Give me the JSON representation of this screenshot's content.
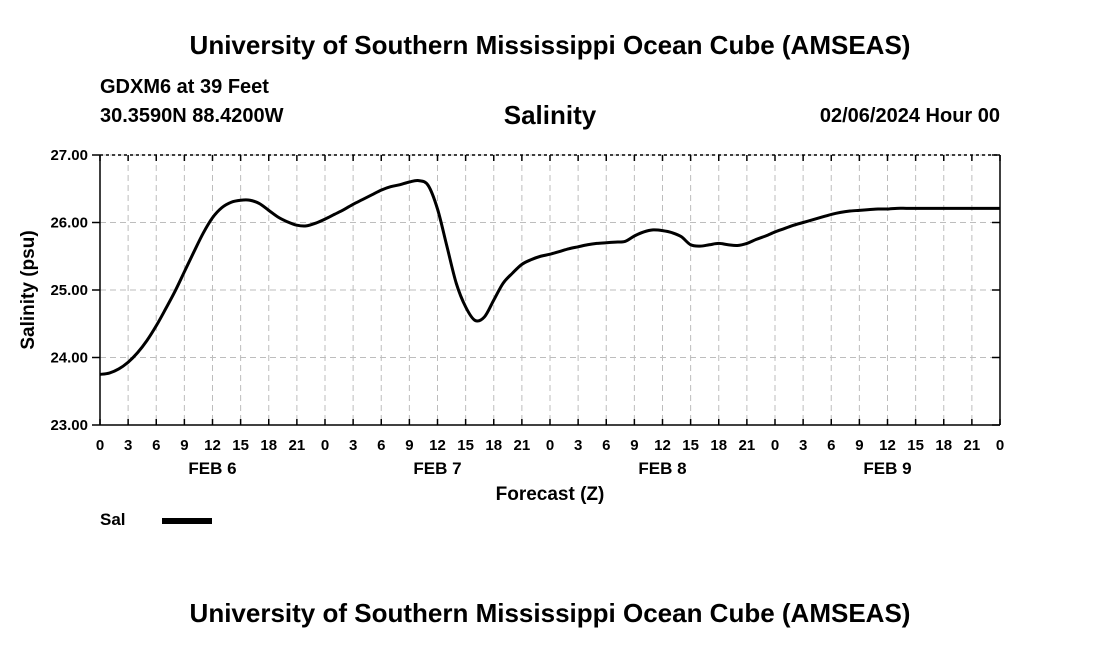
{
  "header": {
    "title": "University of Southern Mississippi Ocean Cube (AMSEAS)",
    "station": "GDXM6 at 39 Feet",
    "coords": "30.3590N  88.4200W",
    "variable": "Salinity",
    "datetime": "02/06/2024 Hour 00"
  },
  "footer": {
    "title": "University of Southern Mississippi Ocean Cube (AMSEAS)"
  },
  "chart_data": {
    "type": "line",
    "title": "Salinity",
    "xlabel": "Forecast (Z)",
    "ylabel": "Salinity (psu)",
    "ylim": [
      23.0,
      27.0
    ],
    "y_ticks": [
      "23.00",
      "24.00",
      "25.00",
      "26.00",
      "27.00"
    ],
    "y_tick_values": [
      23,
      24,
      25,
      26,
      27
    ],
    "xlim": [
      0,
      96
    ],
    "x_tick_hours": [
      0,
      3,
      6,
      9,
      12,
      15,
      18,
      21,
      24,
      27,
      30,
      33,
      36,
      39,
      42,
      45,
      48,
      51,
      54,
      57,
      60,
      63,
      66,
      69,
      72,
      75,
      78,
      81,
      84,
      87,
      90,
      93,
      96
    ],
    "x_tick_labels": [
      "0",
      "3",
      "6",
      "9",
      "12",
      "15",
      "18",
      "21",
      "0",
      "3",
      "6",
      "9",
      "12",
      "15",
      "18",
      "21",
      "0",
      "3",
      "6",
      "9",
      "12",
      "15",
      "18",
      "21",
      "0",
      "3",
      "6",
      "9",
      "12",
      "15",
      "18",
      "21",
      "0"
    ],
    "day_labels": [
      {
        "label": "FEB 6",
        "hour": 12
      },
      {
        "label": "FEB 7",
        "hour": 36
      },
      {
        "label": "FEB 8",
        "hour": 60
      },
      {
        "label": "FEB 9",
        "hour": 84
      }
    ],
    "grid": true,
    "legend": [
      {
        "name": "Sal",
        "color": "#000000"
      }
    ],
    "series": [
      {
        "name": "Sal",
        "x": [
          0,
          1,
          2,
          3,
          4,
          5,
          6,
          7,
          8,
          9,
          10,
          11,
          12,
          13,
          14,
          15,
          16,
          17,
          18,
          19,
          20,
          21,
          22,
          23,
          24,
          25,
          26,
          27,
          28,
          29,
          30,
          31,
          32,
          33,
          34,
          35,
          36,
          37,
          38,
          39,
          40,
          41,
          42,
          43,
          44,
          45,
          46,
          47,
          48,
          49,
          50,
          51,
          52,
          53,
          54,
          55,
          56,
          57,
          58,
          59,
          60,
          61,
          62,
          63,
          64,
          65,
          66,
          67,
          68,
          69,
          70,
          71,
          72,
          73,
          74,
          75,
          76,
          77,
          78,
          79,
          80,
          81,
          82,
          83,
          84,
          85,
          86,
          87,
          88,
          89,
          90,
          91,
          92,
          93,
          94,
          95,
          96
        ],
        "values": [
          23.75,
          23.77,
          23.83,
          23.93,
          24.07,
          24.25,
          24.47,
          24.72,
          24.98,
          25.27,
          25.56,
          25.84,
          26.07,
          26.22,
          26.3,
          26.33,
          26.33,
          26.28,
          26.18,
          26.08,
          26.01,
          25.96,
          25.95,
          25.99,
          26.05,
          26.12,
          26.19,
          26.27,
          26.34,
          26.41,
          26.48,
          26.53,
          26.56,
          26.6,
          26.62,
          26.55,
          26.2,
          25.65,
          25.1,
          24.75,
          24.55,
          24.6,
          24.85,
          25.1,
          25.25,
          25.38,
          25.45,
          25.5,
          25.53,
          25.57,
          25.61,
          25.64,
          25.67,
          25.69,
          25.7,
          25.71,
          25.72,
          25.8,
          25.86,
          25.89,
          25.88,
          25.85,
          25.79,
          25.67,
          25.65,
          25.67,
          25.69,
          25.67,
          25.66,
          25.69,
          25.75,
          25.8,
          25.86,
          25.91,
          25.96,
          26.0,
          26.04,
          26.08,
          26.12,
          26.15,
          26.17,
          26.18,
          26.19,
          26.2,
          26.2,
          26.21,
          26.21,
          26.21,
          26.21,
          26.21,
          26.21,
          26.21,
          26.21,
          26.21,
          26.21,
          26.21,
          26.21
        ]
      }
    ]
  }
}
